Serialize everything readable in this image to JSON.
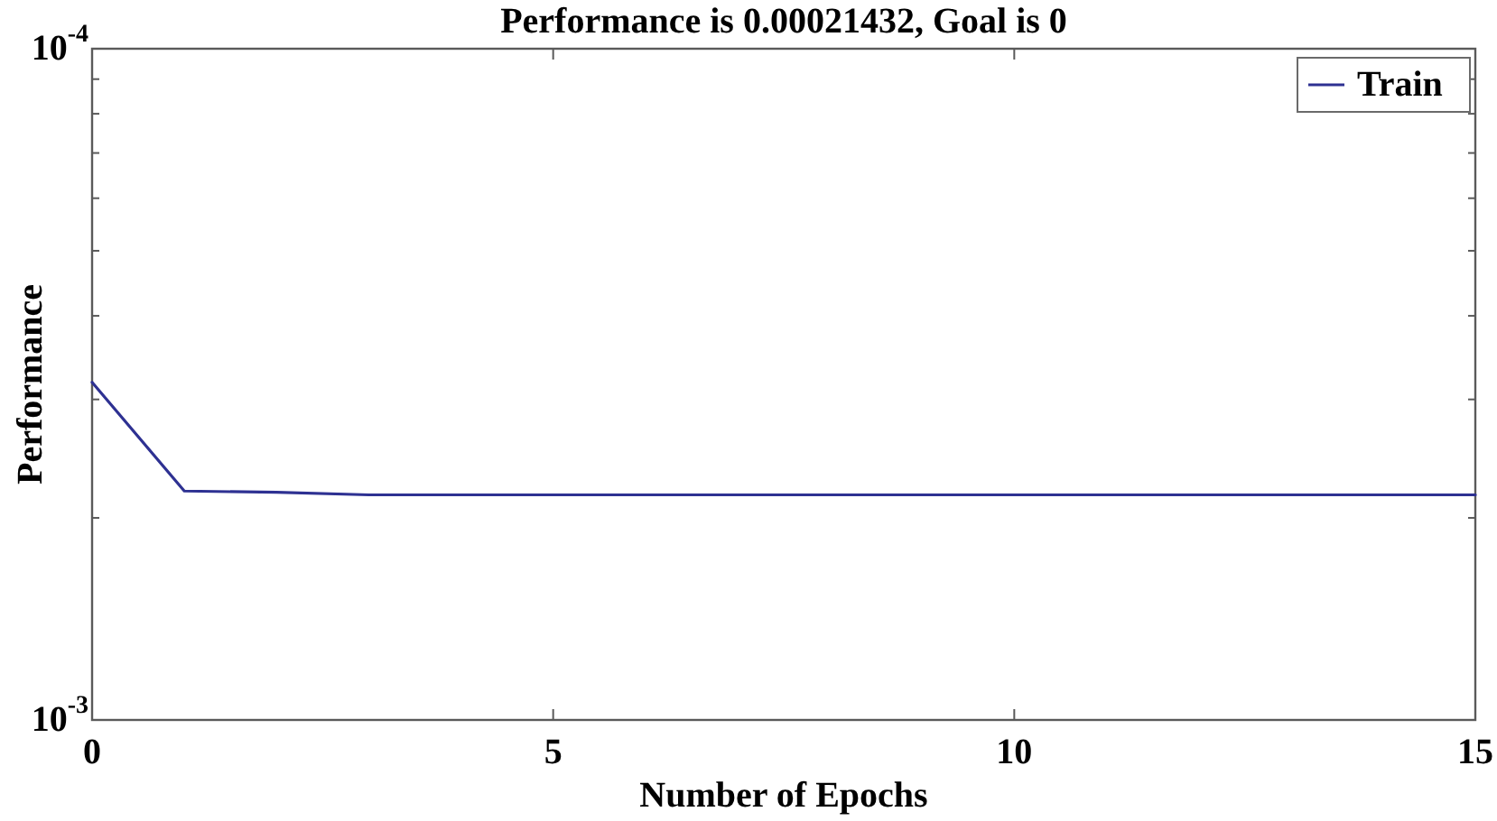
{
  "chart_data": {
    "type": "line",
    "title": "Performance is 0.00021432, Goal is 0",
    "xlabel": "Number of Epochs",
    "ylabel": "Performance",
    "x": [
      0,
      1,
      2,
      3,
      4,
      5,
      6,
      7,
      8,
      9,
      10,
      11,
      12,
      13,
      14,
      15
    ],
    "series": [
      {
        "name": "Train",
        "color": "#2e3192",
        "values": [
          0.000314,
          0.000456,
          0.000458,
          0.000462,
          0.000462,
          0.000462,
          0.000462,
          0.000462,
          0.000462,
          0.000462,
          0.000462,
          0.000462,
          0.000462,
          0.000462,
          0.000462,
          0.000462
        ]
      }
    ],
    "xlim": [
      0,
      15
    ],
    "xticks": [
      0,
      5,
      10,
      15
    ],
    "ylim": [
      0.001,
      0.0001
    ],
    "yticks": [
      {
        "value": 0.001,
        "label": "10$^{-3}$"
      },
      {
        "value": 0.0005,
        "label": null
      },
      {
        "value": 0.000333,
        "label": null
      },
      {
        "value": 0.00025,
        "label": null
      },
      {
        "value": 0.0002,
        "label": null
      },
      {
        "value": 0.000167,
        "label": null
      },
      {
        "value": 0.000143,
        "label": null
      },
      {
        "value": 0.000125,
        "label": null
      },
      {
        "value": 0.000111,
        "label": null
      },
      {
        "value": 0.0001,
        "label": "10$^{-4}$"
      }
    ],
    "log": "y",
    "legend": "top right"
  }
}
